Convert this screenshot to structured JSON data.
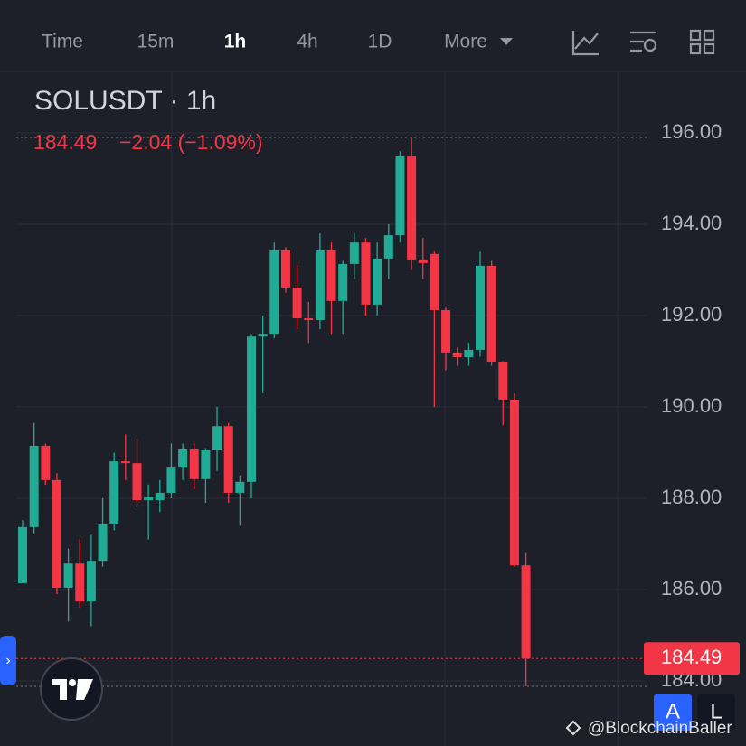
{
  "toolbar": {
    "items": [
      "Time",
      "15m",
      "1h",
      "4h",
      "1D",
      "More"
    ],
    "active": "1h"
  },
  "chart_data": {
    "type": "candlestick",
    "title": "SOLUSDT · 1h",
    "last_price": 184.49,
    "change_label": "−2.04 (−1.09%)",
    "up_color": "#22ab94",
    "down_color": "#f23645",
    "ylim": [
      183.7,
      197.3
    ],
    "yticks": [
      {
        "value": 184,
        "label": "184.00"
      },
      {
        "value": 186,
        "label": "186.00"
      },
      {
        "value": 188,
        "label": "188.00"
      },
      {
        "value": 190,
        "label": "190.00"
      },
      {
        "value": 192,
        "label": "192.00"
      },
      {
        "value": 194,
        "label": "194.00"
      },
      {
        "value": 196,
        "label": "196.00"
      }
    ],
    "grid": true,
    "open": [
      186.14,
      187.37,
      189.15,
      188.4,
      186.04,
      186.57,
      185.74,
      186.63,
      187.43,
      188.81,
      188.77,
      187.96,
      187.96,
      188.12,
      188.67,
      189.07,
      188.42,
      189.05,
      189.58,
      188.12,
      188.36,
      191.54,
      191.6,
      193.43,
      192.61,
      191.94,
      191.9,
      193.43,
      192.32,
      193.13,
      193.6,
      192.24,
      193.25,
      193.76,
      195.49,
      193.23,
      193.35,
      192.12,
      191.19,
      191.09,
      191.25,
      193.09,
      190.99,
      190.16,
      186.53
    ],
    "high": [
      187.52,
      189.65,
      189.2,
      188.55,
      186.9,
      187.1,
      187.2,
      188.0,
      189.0,
      189.4,
      189.3,
      188.3,
      188.4,
      189.2,
      189.2,
      189.2,
      189.1,
      190.0,
      189.65,
      188.5,
      191.6,
      192.0,
      193.6,
      193.5,
      193.1,
      192.3,
      193.8,
      193.6,
      193.2,
      193.8,
      193.7,
      193.6,
      194.0,
      195.6,
      195.9,
      193.7,
      193.4,
      192.2,
      191.3,
      191.4,
      193.4,
      193.2,
      191.0,
      190.3,
      186.8
    ],
    "low": [
      186.14,
      187.23,
      188.3,
      185.9,
      185.3,
      185.6,
      185.2,
      186.5,
      187.3,
      188.4,
      187.8,
      187.1,
      187.7,
      188.0,
      188.4,
      188.2,
      187.9,
      188.6,
      187.9,
      187.4,
      188.0,
      190.3,
      191.5,
      192.5,
      191.7,
      191.4,
      191.7,
      191.6,
      191.6,
      192.8,
      192.0,
      192.0,
      192.8,
      193.6,
      193.0,
      192.8,
      190.0,
      190.8,
      190.9,
      190.9,
      191.1,
      190.9,
      189.6,
      186.5,
      183.88
    ],
    "close": [
      187.37,
      189.15,
      188.4,
      186.04,
      186.57,
      185.74,
      186.63,
      187.43,
      188.81,
      188.77,
      187.96,
      188.02,
      188.12,
      188.67,
      189.07,
      188.42,
      189.05,
      189.58,
      188.12,
      188.36,
      191.54,
      191.6,
      193.43,
      192.61,
      191.94,
      191.9,
      193.43,
      192.32,
      193.13,
      193.6,
      192.24,
      193.25,
      193.76,
      195.49,
      193.23,
      193.15,
      192.12,
      191.19,
      191.09,
      191.25,
      193.09,
      190.99,
      190.16,
      186.53,
      184.49
    ]
  },
  "buttons": [
    "A",
    "L"
  ],
  "watermark": "@BlockchainBaller"
}
